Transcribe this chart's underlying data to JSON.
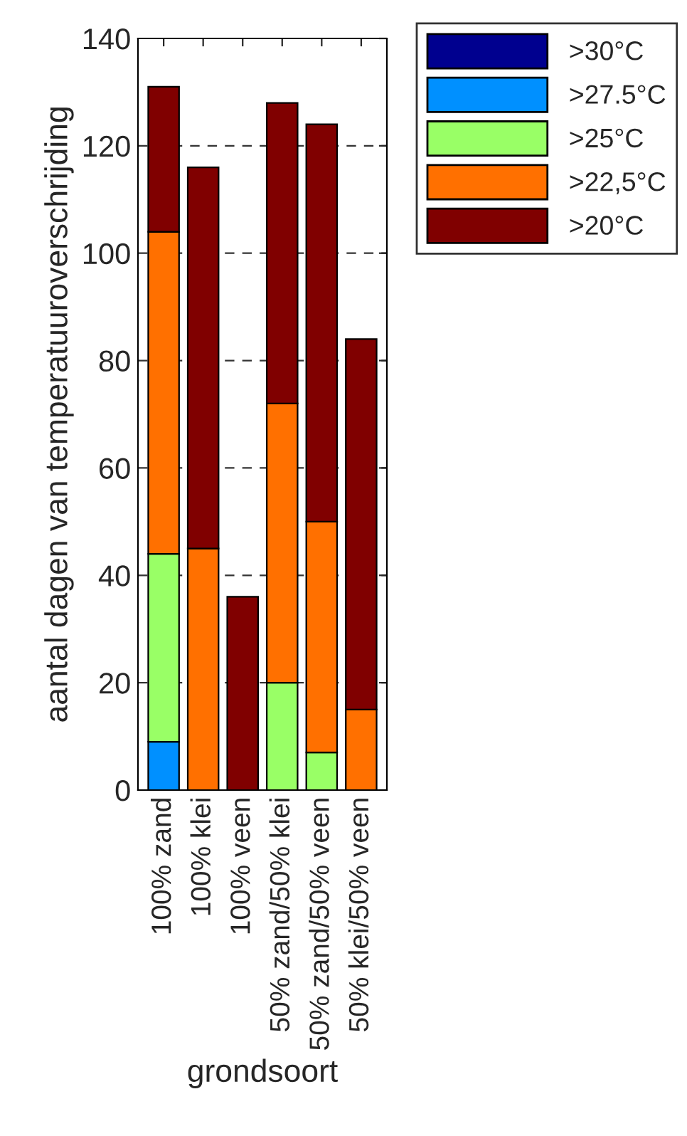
{
  "chart_data": {
    "type": "bar",
    "stacked": true,
    "xlabel": "grondsoort",
    "ylabel": "aantal dagen van temperatuuroverschrijding",
    "categories": [
      "100% zand",
      "100% klei",
      "100% veen",
      "50% zand/50% klei",
      "50% zand/50% veen",
      "50% klei/50% veen"
    ],
    "series": [
      {
        "name": ">30°C",
        "color": "#00008f",
        "values": [
          0,
          0,
          0,
          0,
          0,
          0
        ]
      },
      {
        "name": ">27.5°C",
        "color": "#0090ff",
        "values": [
          9,
          0,
          0,
          0,
          0,
          0
        ]
      },
      {
        "name": ">25°C",
        "color": "#99ff66",
        "values": [
          35,
          0,
          0,
          20,
          7,
          0
        ]
      },
      {
        "name": ">22,5°C",
        "color": "#ff7000",
        "values": [
          60,
          45,
          0,
          52,
          43,
          15
        ]
      },
      {
        "name": ">20°C",
        "color": "#800000",
        "values": [
          27,
          71,
          36,
          56,
          74,
          69
        ]
      }
    ],
    "ylim": [
      0,
      140
    ],
    "yticks": [
      0,
      20,
      40,
      60,
      80,
      100,
      120,
      140
    ],
    "grid": "y",
    "legend": "top right"
  }
}
